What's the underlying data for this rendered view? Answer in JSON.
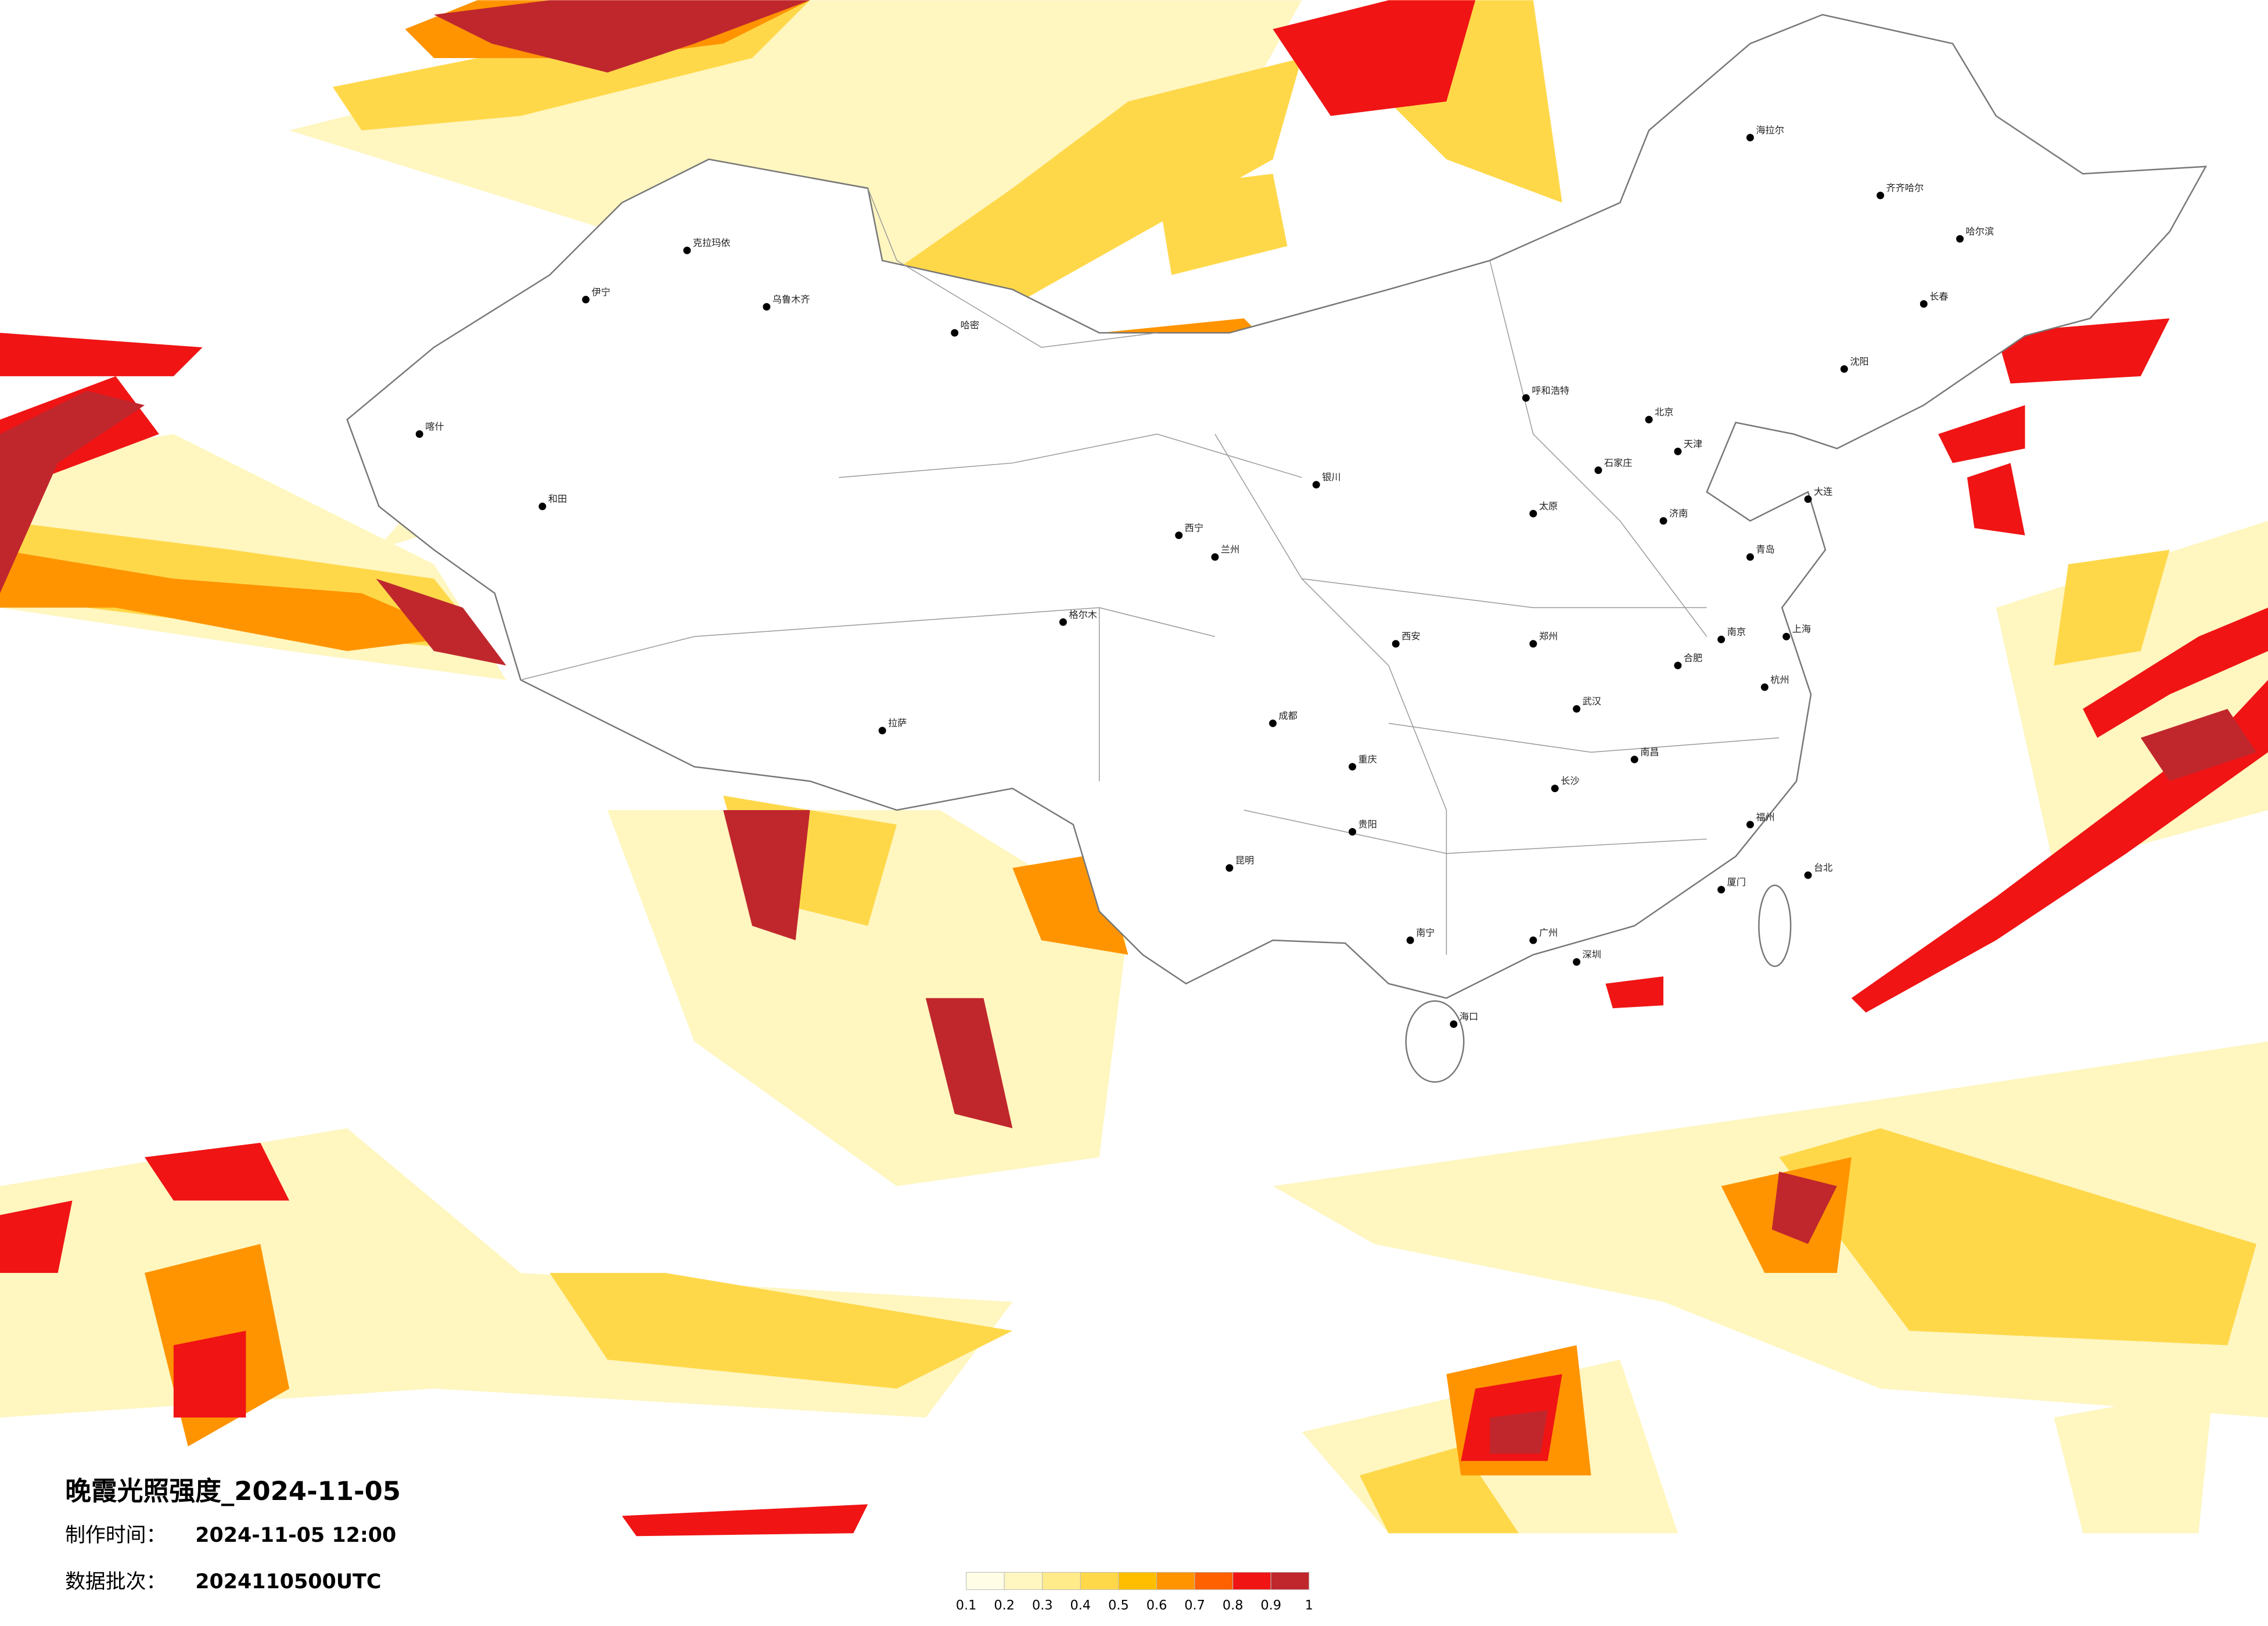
{
  "map": {
    "title": "晚霞光照强度_2024-11-05",
    "made_time": {
      "label": "制作时间：",
      "value": "2024-11-05 12:00"
    },
    "batch": {
      "label": "数据批次：",
      "value": "2024110500UTC"
    },
    "colorbar": {
      "ticks": [
        0.1,
        0.2,
        0.3,
        0.4,
        0.5,
        0.6,
        0.7,
        0.8,
        0.9,
        1
      ],
      "colors": [
        "#fffde6",
        "#fff6c0",
        "#ffeb8a",
        "#ffd84a",
        "#ffbf00",
        "#ff9400",
        "#ff6000",
        "#f01414",
        "#c0272d"
      ]
    },
    "cities": [
      "北京",
      "天津",
      "上海",
      "南京",
      "武汉",
      "长沙",
      "广州",
      "深圳",
      "重庆",
      "成都",
      "西安",
      "兰州",
      "乌鲁木齐",
      "拉萨",
      "昆明",
      "贵阳",
      "南宁",
      "海口",
      "郑州",
      "济南",
      "哈尔滨",
      "长春",
      "沈阳",
      "呼和浩特",
      "银川",
      "西宁",
      "福州",
      "杭州",
      "合肥",
      "南昌",
      "石家庄",
      "太原",
      "台北",
      "喀什",
      "和田",
      "哈密",
      "克拉玛依",
      "伊宁",
      "格尔木",
      "齐齐哈尔",
      "海拉尔",
      "大连",
      "青岛",
      "厦门"
    ]
  }
}
